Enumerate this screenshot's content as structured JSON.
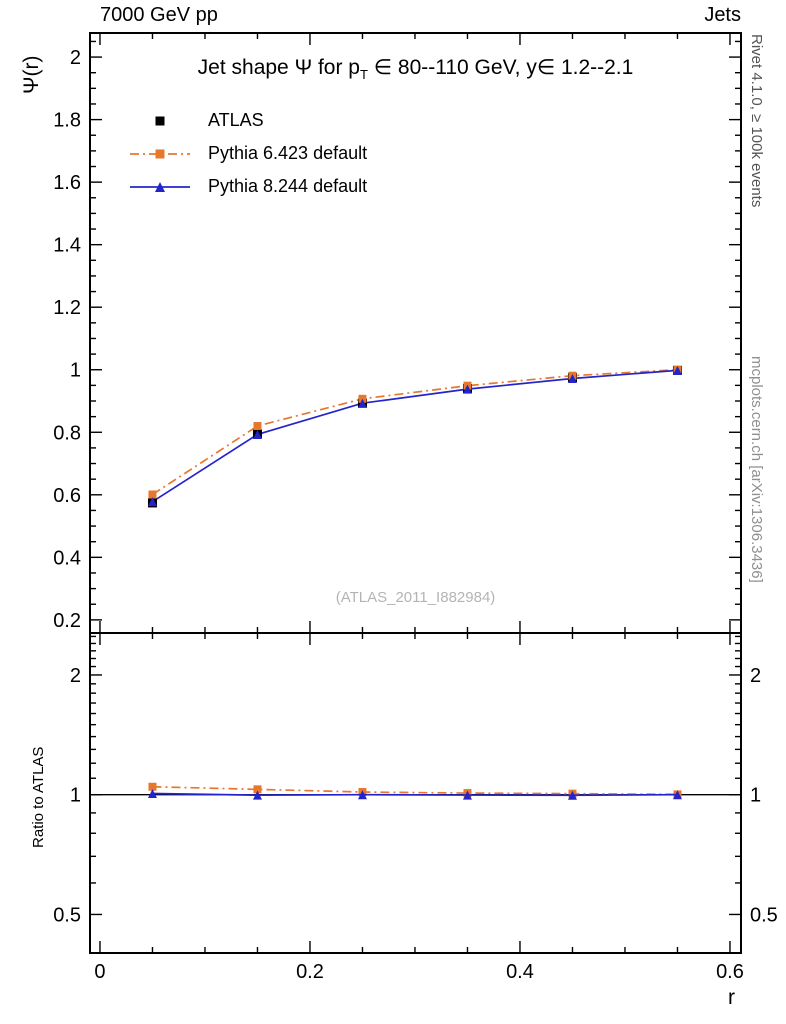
{
  "header": {
    "left": "7000 GeV pp",
    "right": "Jets"
  },
  "right_margin_notes": {
    "top": "Rivet 4.1.0, ≥ 100k events",
    "bottom": "mcplots.cern.ch [arXiv:1306.3436]"
  },
  "title": {
    "part1": "Jet shape Ψ for p",
    "sub": "T",
    "part2": " ∈ 80--110 GeV, y∈ 1.2--2.1"
  },
  "watermark": "(ATLAS_2011_I882984)",
  "axis_labels": {
    "x": "r",
    "y_main": "Ψ(r)",
    "y_ratio": "Ratio to ATLAS"
  },
  "chart_data": {
    "type": "line",
    "title": "Jet shape Ψ for p_T ∈ 80--110 GeV, y∈ 1.2--2.1",
    "xlabel": "r",
    "ylabel": "Ψ(r)",
    "ratio_ylabel": "Ratio to ATLAS",
    "legend_position": "top-left-inside",
    "x": [
      0.05,
      0.15,
      0.25,
      0.35,
      0.45,
      0.55
    ],
    "series": [
      {
        "label": "ATLAS",
        "color": "#000000",
        "marker": "square",
        "linestyle": "none",
        "values": [
          0.574,
          0.795,
          0.893,
          0.94,
          0.975,
          0.998
        ]
      },
      {
        "label": "Pythia 6.423 default",
        "color": "#e8772e",
        "marker": "square",
        "linestyle": "dashdot",
        "values": [
          0.601,
          0.82,
          0.907,
          0.949,
          0.981,
          1.0
        ]
      },
      {
        "label": "Pythia 8.244 default",
        "color": "#2424cc",
        "marker": "triangle",
        "linestyle": "solid",
        "values": [
          0.578,
          0.793,
          0.893,
          0.938,
          0.972,
          0.998
        ]
      }
    ],
    "x_axis": {
      "lim": [
        -0.0095,
        0.6105
      ],
      "major_ticks": [
        0,
        0.2,
        0.4,
        0.6
      ],
      "minor_step": 0.05
    },
    "main_axis": {
      "scale": "linear",
      "lim": [
        0.158,
        2.077
      ],
      "major_ticks": [
        0.2,
        0.4,
        0.6,
        0.8,
        1,
        1.2,
        1.4,
        1.6,
        1.8,
        2
      ],
      "minor_step": 0.05
    },
    "ratio_axis": {
      "scale": "log",
      "lim": [
        0.4,
        2.55
      ],
      "major_ticks": [
        0.5,
        1,
        2
      ],
      "minor_ticks": [
        0.4,
        0.6,
        0.7,
        0.8,
        0.9,
        1.1,
        1.2,
        1.3,
        1.4,
        1.5,
        1.6,
        1.7,
        1.8,
        1.9,
        2.1,
        2.2,
        2.3,
        2.4,
        2.5
      ],
      "reference_line": 1.0
    },
    "ratio_of": "ATLAS"
  }
}
